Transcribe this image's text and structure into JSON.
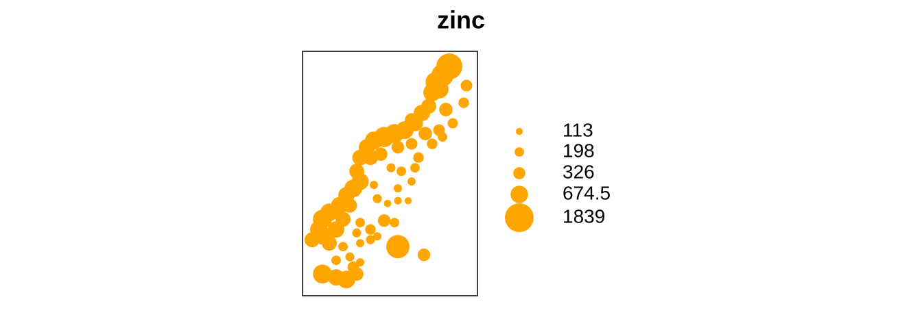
{
  "chart_data": {
    "type": "bubble",
    "title": "zinc",
    "color": "#ffa500",
    "xlim": [
      178470,
      181530
    ],
    "ylim": [
      329560,
      333840
    ],
    "x": [
      181038,
      180918,
      180798,
      180738,
      180858,
      181338,
      181290,
      181098,
      180978,
      180678,
      180558,
      180438,
      180378,
      180858,
      180918,
      180738,
      180618,
      180258,
      180078,
      179898,
      179718,
      179598,
      179478,
      179418,
      179478,
      179358,
      179238,
      179118,
      178938,
      178818,
      178758,
      178638,
      178818,
      178938,
      179058,
      179178,
      179298,
      179658,
      179838,
      180138,
      180378,
      180498,
      180438,
      180378,
      180018,
      180198,
      180138,
      179718,
      179778,
      179958,
      180138,
      180318,
      179898,
      180078,
      179478,
      179658,
      179478,
      179658,
      179778,
      179418,
      180138,
      180594,
      179058,
      179298,
      179478,
      179178,
      178818,
      179058,
      179238,
      179418,
      179358
    ],
    "y": [
      333576,
      333420,
      333300,
      333120,
      333180,
      333240,
      332940,
      332580,
      332820,
      332880,
      332760,
      332580,
      332640,
      332460,
      332340,
      332220,
      332400,
      332460,
      332400,
      332340,
      332280,
      332160,
      331980,
      331740,
      331560,
      331440,
      331320,
      331140,
      331020,
      330900,
      330720,
      330540,
      330600,
      330480,
      330720,
      330900,
      331140,
      331980,
      332040,
      332160,
      332220,
      331980,
      331800,
      331560,
      331800,
      331740,
      331440,
      331500,
      331260,
      331176,
      331224,
      331224,
      330876,
      330840,
      330840,
      330720,
      330480,
      330540,
      330600,
      330660,
      330420,
      330276,
      330180,
      330240,
      330144,
      330420,
      329940,
      329880,
      329844,
      329940,
      330060
    ],
    "sizes": [
      1500,
      1100,
      900,
      700,
      800,
      300,
      250,
      230,
      400,
      500,
      600,
      550,
      400,
      300,
      200,
      250,
      400,
      700,
      800,
      900,
      700,
      600,
      550,
      500,
      650,
      700,
      600,
      650,
      700,
      800,
      700,
      500,
      600,
      500,
      600,
      500,
      450,
      500,
      400,
      350,
      300,
      250,
      200,
      150,
      180,
      200,
      150,
      150,
      180,
      120,
      130,
      110,
      350,
      200,
      200,
      250,
      150,
      180,
      150,
      180,
      1200,
      350,
      200,
      180,
      150,
      200,
      800,
      600,
      700,
      400,
      300
    ],
    "legend": [
      113,
      198,
      326,
      674.5,
      1839
    ]
  }
}
